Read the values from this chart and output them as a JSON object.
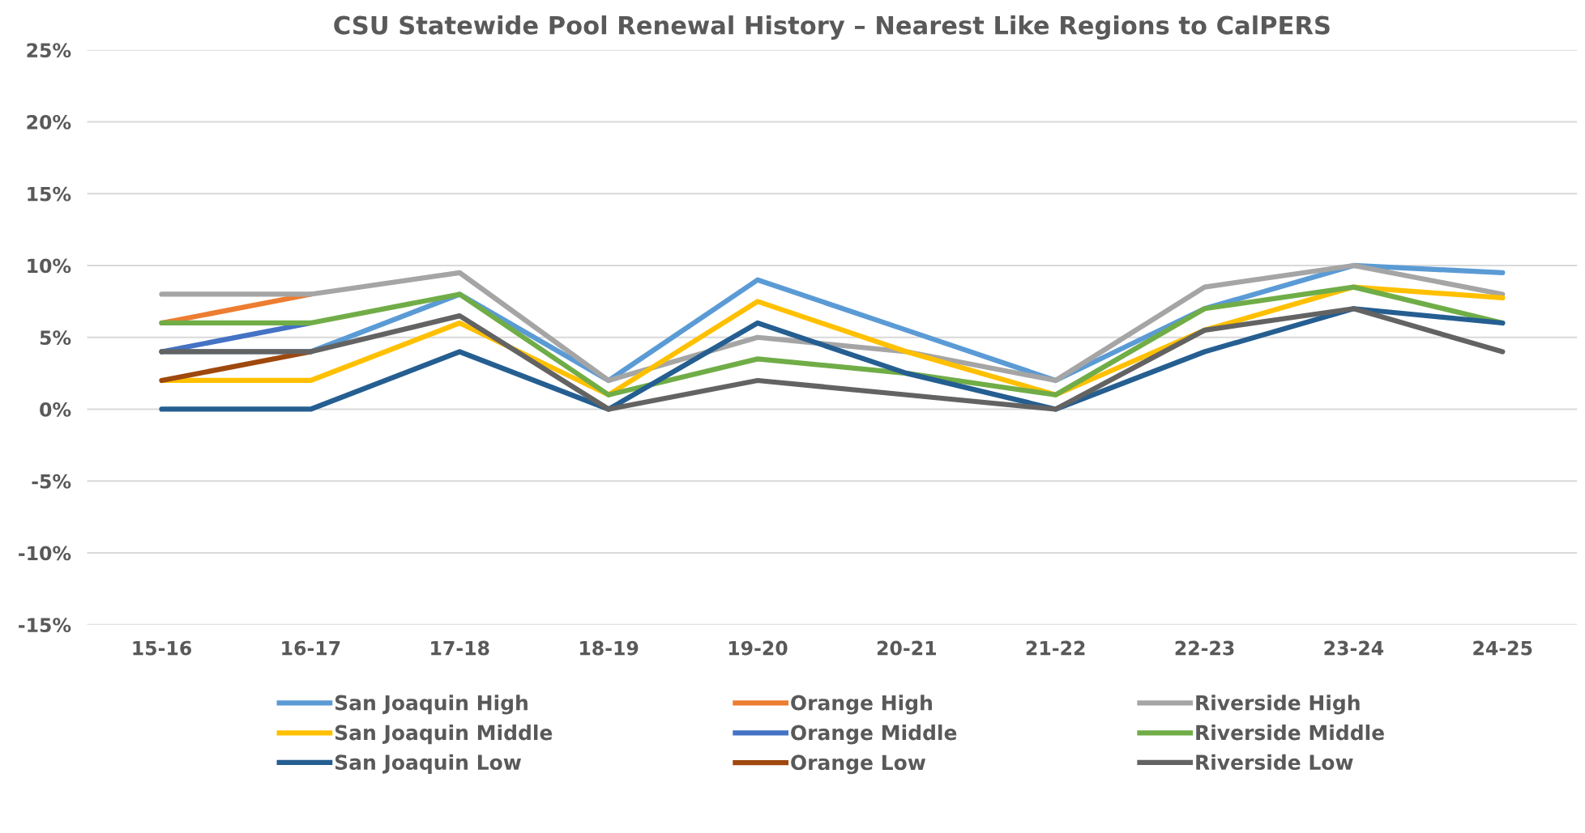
{
  "chart_data": {
    "type": "line",
    "title": "CSU Statewide Pool Renewal History – Nearest Like Regions to CalPERS",
    "categories": [
      "15-16",
      "16-17",
      "17-18",
      "18-19",
      "19-20",
      "20-21",
      "21-22",
      "22-23",
      "23-24",
      "24-25"
    ],
    "series": [
      {
        "name": "San Joaquin High",
        "color": "#5b9bd5",
        "values": [
          4,
          4,
          8,
          2,
          9,
          5.5,
          2,
          7,
          10,
          9.5
        ]
      },
      {
        "name": "Orange High",
        "color": "#ed7d31",
        "values": [
          6,
          8,
          null,
          null,
          null,
          null,
          null,
          null,
          null,
          null
        ]
      },
      {
        "name": "Riverside High",
        "color": "#a5a5a5",
        "values": [
          8,
          8,
          9.5,
          2,
          5,
          4,
          2,
          8.5,
          10,
          8
        ]
      },
      {
        "name": "San Joaquin Middle",
        "color": "#ffc000",
        "values": [
          2,
          2,
          6,
          1,
          7.5,
          4,
          1,
          5.5,
          8.5,
          7.75
        ]
      },
      {
        "name": "Orange Middle",
        "color": "#4472c4",
        "values": [
          4,
          6,
          null,
          null,
          null,
          null,
          null,
          null,
          null,
          null
        ]
      },
      {
        "name": "Riverside Middle",
        "color": "#70ad47",
        "values": [
          6,
          6,
          8,
          1,
          3.5,
          2.5,
          1,
          7,
          8.5,
          6
        ]
      },
      {
        "name": "San Joaquin Low",
        "color": "#255e91",
        "values": [
          0,
          0,
          4,
          0,
          6,
          2.5,
          0,
          4,
          7,
          6
        ]
      },
      {
        "name": "Orange Low",
        "color": "#9e480e",
        "values": [
          2,
          4,
          null,
          null,
          null,
          null,
          null,
          null,
          null,
          null
        ]
      },
      {
        "name": "Riverside Low",
        "color": "#636363",
        "values": [
          4,
          4,
          6.5,
          0,
          2,
          1,
          0,
          5.5,
          7,
          4
        ]
      }
    ],
    "ylim": [
      -15,
      25
    ],
    "yticks": [
      {
        "value": -15,
        "label": "-15%"
      },
      {
        "value": -10,
        "label": "-10%"
      },
      {
        "value": -5,
        "label": "-5%"
      },
      {
        "value": 0,
        "label": "0%"
      },
      {
        "value": 5,
        "label": "5%"
      },
      {
        "value": 10,
        "label": "10%"
      },
      {
        "value": 15,
        "label": "15%"
      },
      {
        "value": 20,
        "label": "20%"
      },
      {
        "value": 25,
        "label": "25%"
      }
    ],
    "grid": "y",
    "legend": "bottom",
    "marker": "none",
    "line_style": "solid"
  }
}
